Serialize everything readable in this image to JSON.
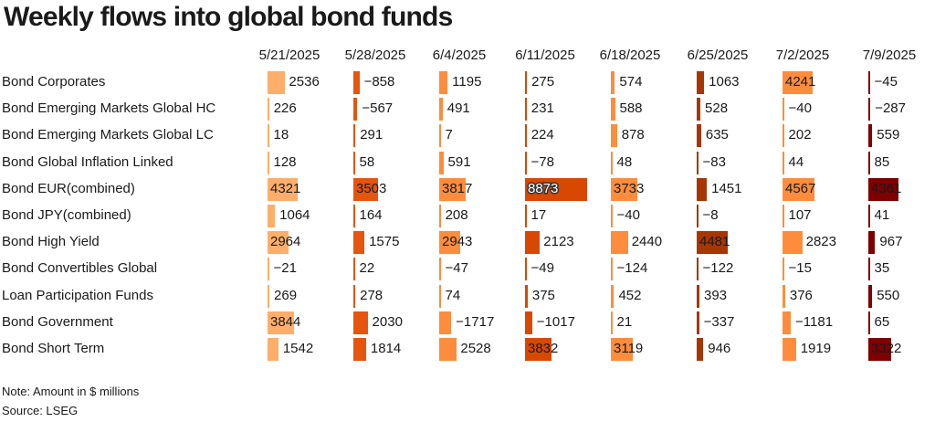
{
  "title": "Weekly flows into global bond funds",
  "note": "Note: Amount in $ millions",
  "source": "Source: LSEG",
  "chart_data": {
    "type": "table",
    "title": "Weekly flows into global bond funds",
    "columns": [
      "5/21/2025",
      "5/28/2025",
      "6/4/2025",
      "6/11/2025",
      "6/18/2025",
      "6/25/2025",
      "7/2/2025",
      "7/9/2025"
    ],
    "column_colors": [
      "#fdae6b",
      "#e6550d",
      "#fd8d3c",
      "#d94801",
      "#fd8d3c",
      "#a63603",
      "#fd8d3c",
      "#7f0000"
    ],
    "rows": [
      {
        "label": "Bond Corporates",
        "values": [
          "2536",
          "−858",
          "1195",
          "275",
          "574",
          "1063",
          "4241",
          "−45"
        ]
      },
      {
        "label": "Bond Emerging Markets Global HC",
        "values": [
          "226",
          "−567",
          "491",
          "231",
          "588",
          "528",
          "−40",
          "−287"
        ]
      },
      {
        "label": "Bond Emerging Markets Global LC",
        "values": [
          "18",
          "291",
          "7",
          "224",
          "878",
          "635",
          "202",
          "559"
        ]
      },
      {
        "label": "Bond Global Inflation Linked",
        "values": [
          "128",
          "58",
          "591",
          "−78",
          "48",
          "−83",
          "44",
          "85"
        ]
      },
      {
        "label": "Bond EUR(combined)",
        "values": [
          "4321",
          "3503",
          "3817",
          "8873",
          "3733",
          "1451",
          "4567",
          "4361"
        ]
      },
      {
        "label": "Bond JPY(combined)",
        "values": [
          "1064",
          "164",
          "208",
          "17",
          "−40",
          "−8",
          "107",
          "41"
        ]
      },
      {
        "label": "Bond High Yield",
        "values": [
          "2964",
          "1575",
          "2943",
          "2123",
          "2440",
          "4481",
          "2823",
          "967"
        ]
      },
      {
        "label": "Bond Convertibles Global",
        "values": [
          "−21",
          "22",
          "−47",
          "−49",
          "−124",
          "−122",
          "−15",
          "35"
        ]
      },
      {
        "label": "Loan Participation Funds",
        "values": [
          "269",
          "278",
          "74",
          "375",
          "452",
          "393",
          "376",
          "550"
        ]
      },
      {
        "label": "Bond Government",
        "values": [
          "3844",
          "2030",
          "−1717",
          "−1017",
          "21",
          "−337",
          "−1181",
          "65"
        ]
      },
      {
        "label": "Bond Short Term",
        "values": [
          "1542",
          "1814",
          "2528",
          "3832",
          "3119",
          "946",
          "1919",
          "3322"
        ]
      }
    ]
  }
}
